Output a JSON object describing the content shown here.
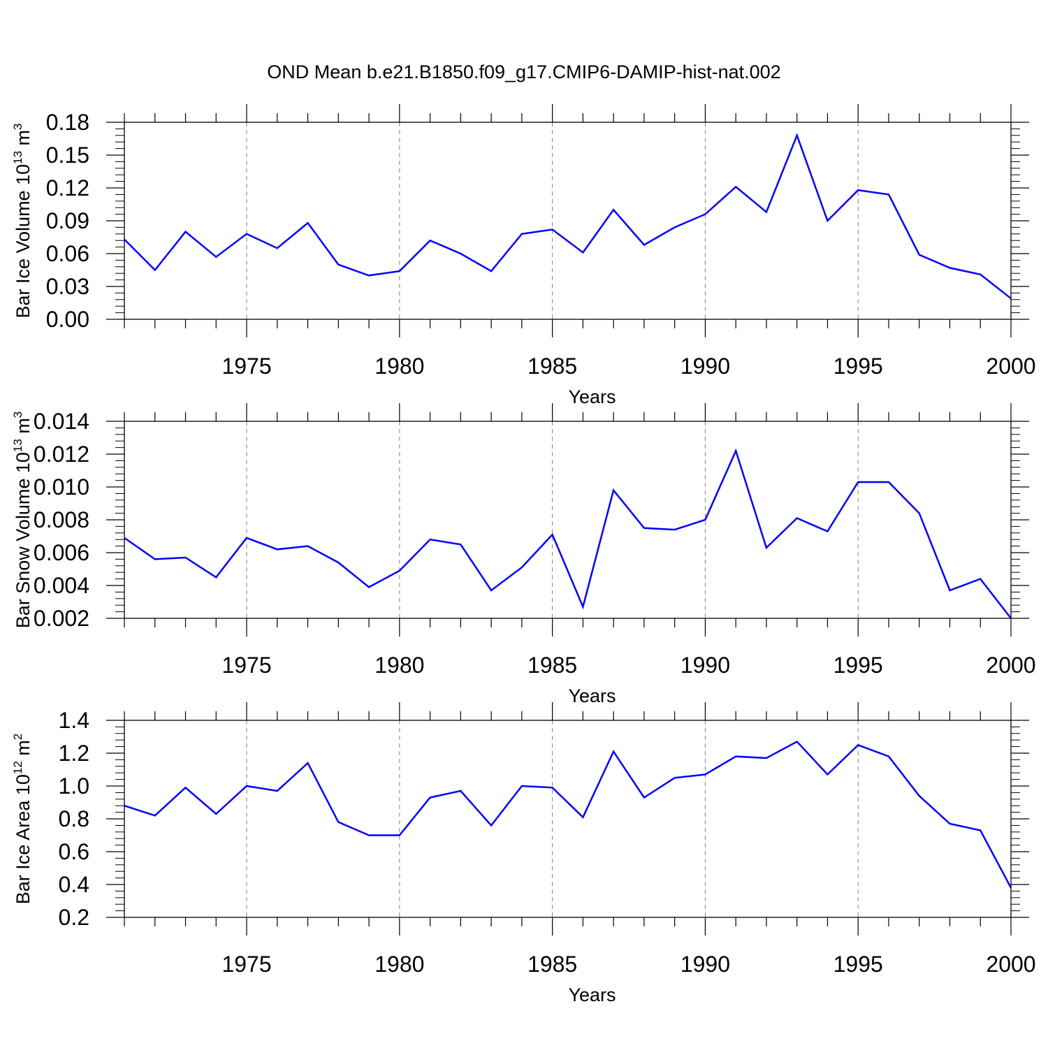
{
  "title": "OND Mean b.e21.B1850.f09_g17.CMIP6-DAMIP-hist-nat.002",
  "colors": {
    "line": "#0000ff",
    "axis": "#000000",
    "grid": "#808080"
  },
  "chart_data": [
    {
      "type": "line",
      "ylabel": {
        "base": "Bar Ice Volume 10",
        "sup1": "13",
        "mid": " m",
        "sup2": "3"
      },
      "xlabel": "Years",
      "xlim": [
        1971,
        2000
      ],
      "ylim": [
        0,
        0.18
      ],
      "x_ticks": [
        1975,
        1980,
        1985,
        1990,
        1995,
        2000
      ],
      "y_ticks": [
        "0.00",
        "0.03",
        "0.06",
        "0.09",
        "0.12",
        "0.15",
        "0.18"
      ],
      "grid": "vertical dashed at x major ticks",
      "x": [
        1971,
        1972,
        1973,
        1974,
        1975,
        1976,
        1977,
        1978,
        1979,
        1980,
        1981,
        1982,
        1983,
        1984,
        1985,
        1986,
        1987,
        1988,
        1989,
        1990,
        1991,
        1992,
        1993,
        1994,
        1995,
        1996,
        1997,
        1998,
        1999,
        2000
      ],
      "values": [
        0.073,
        0.045,
        0.08,
        0.057,
        0.078,
        0.065,
        0.088,
        0.05,
        0.04,
        0.044,
        0.072,
        0.06,
        0.044,
        0.078,
        0.082,
        0.061,
        0.1,
        0.068,
        0.084,
        0.096,
        0.121,
        0.098,
        0.168,
        0.09,
        0.118,
        0.114,
        0.059,
        0.047,
        0.041,
        0.019
      ]
    },
    {
      "type": "line",
      "ylabel": {
        "base": "Bar Snow Volume 10",
        "sup1": "13",
        "mid": " m",
        "sup2": "3"
      },
      "xlabel": "Years",
      "xlim": [
        1971,
        2000
      ],
      "ylim": [
        0.002,
        0.014
      ],
      "x_ticks": [
        1975,
        1980,
        1985,
        1990,
        1995,
        2000
      ],
      "y_ticks": [
        "0.002",
        "0.004",
        "0.006",
        "0.008",
        "0.010",
        "0.012",
        "0.014"
      ],
      "grid": "vertical dashed at x major ticks",
      "x": [
        1971,
        1972,
        1973,
        1974,
        1975,
        1976,
        1977,
        1978,
        1979,
        1980,
        1981,
        1982,
        1983,
        1984,
        1985,
        1986,
        1987,
        1988,
        1989,
        1990,
        1991,
        1992,
        1993,
        1994,
        1995,
        1996,
        1997,
        1998,
        1999,
        2000
      ],
      "values": [
        0.0069,
        0.0056,
        0.0057,
        0.0045,
        0.0069,
        0.0062,
        0.0064,
        0.0054,
        0.0039,
        0.0049,
        0.0068,
        0.0065,
        0.0037,
        0.0051,
        0.0071,
        0.0027,
        0.0098,
        0.0075,
        0.0074,
        0.008,
        0.0122,
        0.0063,
        0.0081,
        0.0073,
        0.0103,
        0.0103,
        0.0084,
        0.0037,
        0.0044,
        0.002
      ]
    },
    {
      "type": "line",
      "ylabel": {
        "base": "Bar Ice Area 10",
        "sup1": "12",
        "mid": " m",
        "sup2": "2"
      },
      "xlabel": "Years",
      "xlim": [
        1971,
        2000
      ],
      "ylim": [
        0.2,
        1.4
      ],
      "x_ticks": [
        1975,
        1980,
        1985,
        1990,
        1995,
        2000
      ],
      "y_ticks": [
        "0.2",
        "0.4",
        "0.6",
        "0.8",
        "1.0",
        "1.2",
        "1.4"
      ],
      "grid": "vertical dashed at x major ticks",
      "x": [
        1971,
        1972,
        1973,
        1974,
        1975,
        1976,
        1977,
        1978,
        1979,
        1980,
        1981,
        1982,
        1983,
        1984,
        1985,
        1986,
        1987,
        1988,
        1989,
        1990,
        1991,
        1992,
        1993,
        1994,
        1995,
        1996,
        1997,
        1998,
        1999,
        2000
      ],
      "values": [
        0.88,
        0.82,
        0.99,
        0.83,
        1.0,
        0.97,
        1.14,
        0.78,
        0.7,
        0.7,
        0.93,
        0.97,
        0.76,
        1.0,
        0.99,
        0.81,
        1.21,
        0.93,
        1.05,
        1.07,
        1.18,
        1.17,
        1.27,
        1.07,
        1.25,
        1.18,
        0.94,
        0.77,
        0.73,
        0.38
      ]
    }
  ]
}
